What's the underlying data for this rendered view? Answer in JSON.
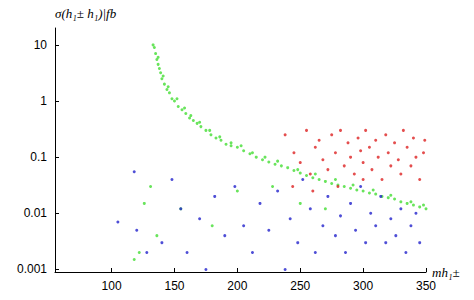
{
  "chart_data": {
    "type": "scatter",
    "x_label": "mh₁±",
    "y_label": "σ(h₁± h₁)|fb",
    "xlim": [
      55,
      350
    ],
    "xticks": [
      100,
      150,
      200,
      250,
      300,
      350
    ],
    "ylim": [
      0.0009,
      20
    ],
    "yticks": [
      0.001,
      0.01,
      0.1,
      1,
      10
    ],
    "log": "y",
    "grid": false,
    "marker": "circle",
    "series": [
      {
        "color": "#44dd33",
        "x": [
          133,
          134,
          135,
          136,
          137,
          138,
          139,
          140,
          142,
          144,
          146,
          148,
          150,
          153,
          156,
          159,
          162,
          165,
          168,
          171,
          175,
          179,
          183,
          187,
          191,
          195,
          200,
          205,
          210,
          215,
          220,
          225,
          230,
          235,
          240,
          245,
          250,
          255,
          260,
          265,
          270,
          275,
          280,
          285,
          290,
          295,
          300,
          305,
          310,
          315,
          320,
          325,
          330,
          335,
          340,
          345,
          350,
          137,
          141,
          145,
          152,
          158,
          163,
          170,
          178,
          186,
          195,
          203,
          212,
          222,
          232,
          248,
          262,
          278,
          292,
          308,
          322,
          338,
          348,
          118,
          122,
          126,
          131,
          136,
          155,
          180,
          200,
          228,
          250,
          270
        ],
        "values": [
          10,
          9,
          7,
          5.5,
          4.5,
          3.8,
          3.2,
          2.5,
          2.0,
          1.6,
          1.4,
          1.1,
          1.0,
          0.8,
          0.7,
          0.6,
          0.5,
          0.45,
          0.4,
          0.35,
          0.3,
          0.25,
          0.22,
          0.2,
          0.17,
          0.16,
          0.15,
          0.13,
          0.115,
          0.1,
          0.09,
          0.082,
          0.075,
          0.07,
          0.065,
          0.058,
          0.052,
          0.047,
          0.043,
          0.04,
          0.037,
          0.034,
          0.032,
          0.03,
          0.028,
          0.026,
          0.025,
          0.023,
          0.022,
          0.02,
          0.019,
          0.018,
          0.016,
          0.015,
          0.014,
          0.013,
          0.012,
          6,
          2.8,
          1.8,
          1.1,
          0.75,
          0.55,
          0.42,
          0.3,
          0.23,
          0.18,
          0.16,
          0.12,
          0.1,
          0.085,
          0.06,
          0.05,
          0.04,
          0.032,
          0.026,
          0.021,
          0.016,
          0.014,
          0.0015,
          0.002,
          0.015,
          0.03,
          0.004,
          0.012,
          0.006,
          0.025,
          0.03,
          0.015,
          0.012
        ]
      },
      {
        "color": "#dd2222",
        "x": [
          238,
          245,
          250,
          255,
          258,
          262,
          265,
          268,
          272,
          275,
          278,
          282,
          285,
          288,
          290,
          293,
          296,
          298,
          300,
          302,
          305,
          307,
          310,
          312,
          315,
          318,
          320,
          322,
          325,
          328,
          330,
          332,
          335,
          338,
          340,
          342,
          345,
          348,
          349,
          244,
          260,
          280,
          300
        ],
        "values": [
          0.25,
          0.12,
          0.08,
          0.3,
          0.05,
          0.15,
          0.2,
          0.09,
          0.06,
          0.25,
          0.12,
          0.3,
          0.07,
          0.18,
          0.1,
          0.05,
          0.22,
          0.13,
          0.08,
          0.3,
          0.15,
          0.06,
          0.2,
          0.1,
          0.04,
          0.25,
          0.12,
          0.07,
          0.18,
          0.09,
          0.05,
          0.3,
          0.15,
          0.07,
          0.22,
          0.1,
          0.04,
          0.12,
          0.2,
          0.03,
          0.025,
          0.03,
          0.04
        ]
      },
      {
        "color": "#2222cc",
        "x": [
          105,
          118,
          120,
          128,
          140,
          148,
          155,
          160,
          170,
          175,
          182,
          190,
          198,
          205,
          212,
          218,
          225,
          232,
          238,
          242,
          248,
          252,
          258,
          262,
          268,
          272,
          278,
          282,
          286,
          290,
          294,
          298,
          302,
          306,
          310,
          314,
          318,
          322,
          326,
          330,
          334,
          338,
          342,
          345
        ],
        "values": [
          0.007,
          0.055,
          0.005,
          0.002,
          0.003,
          0.04,
          0.012,
          0.002,
          0.008,
          0.001,
          0.02,
          0.004,
          0.03,
          0.006,
          0.002,
          0.015,
          0.005,
          0.025,
          0.001,
          0.008,
          0.003,
          0.04,
          0.012,
          0.002,
          0.006,
          0.02,
          0.004,
          0.009,
          0.002,
          0.015,
          0.005,
          0.03,
          0.003,
          0.01,
          0.006,
          0.02,
          0.003,
          0.008,
          0.004,
          0.012,
          0.002,
          0.006,
          0.01,
          0.003
        ]
      }
    ]
  }
}
